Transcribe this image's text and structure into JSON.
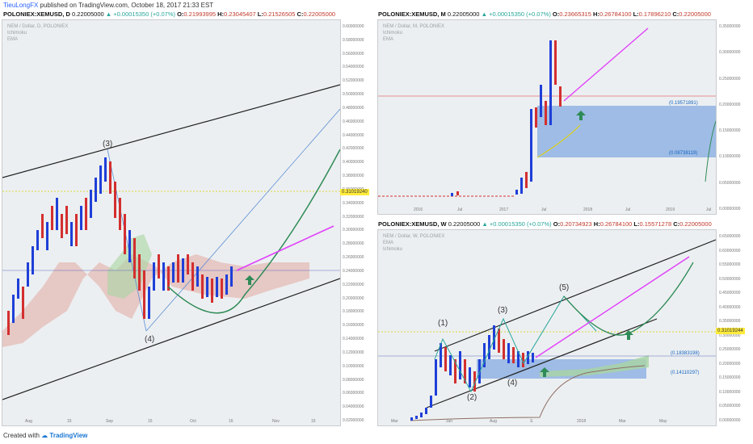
{
  "publish": {
    "user": "TieuLongFX",
    "text": " published on TradingView.com, October 18, 2017 21:33 EST"
  },
  "daily": {
    "title": "POLONIEX:XEMUSD, D",
    "o": "0.21993995",
    "h": "0.23045407",
    "l": "0.21526505",
    "c": "0.22005000",
    "last": "0.22005000",
    "change": "▲ +0.00015350 (+0.07%)",
    "legend": [
      "NEM / Dollar, D, POLONIEX",
      "Ichimoku",
      "EMA"
    ],
    "price_tag": "0.31019240",
    "waves": [
      "(3)",
      "(4)"
    ],
    "xlabels": [
      "Aug",
      "15",
      "Sep",
      "15",
      "Oct",
      "16",
      "Nov",
      "15"
    ],
    "ylabels": [
      "0.60000000",
      "0.58000000",
      "0.56000000",
      "0.54000000",
      "0.52000000",
      "0.50000000",
      "0.48000000",
      "0.46000000",
      "0.44000000",
      "0.42000000",
      "0.40000000",
      "0.38000000",
      "0.36000000",
      "0.34000000",
      "0.32000000",
      "0.30000000",
      "0.28000000",
      "0.26000000",
      "0.24000000",
      "0.22000000",
      "0.20000000",
      "0.18000000",
      "0.16000000",
      "0.14000000",
      "0.12000000",
      "0.10000000",
      "0.08000000",
      "0.06000000",
      "0.04000000",
      "0.02000000"
    ]
  },
  "monthly": {
    "title": "POLONIEX:XEMUSD, M",
    "o": "0.23665315",
    "h": "0.26784100",
    "l": "0.17896210",
    "c": "0.22005000",
    "last": "0.22005000",
    "change": "▲ +0.00015350 (+0.07%)",
    "legend": [
      "NEM / Dollar, M, POLONIEX",
      "Ichimoku",
      "EMA"
    ],
    "fib_top": "(0.19571891)",
    "fib_bot": "(0.08738119)",
    "xlabels": [
      "2016",
      "Jul",
      "2017",
      "Jul",
      "2018",
      "Jul",
      "2019",
      "Jul"
    ],
    "ylabels": [
      "0.35000000",
      "0.30000000",
      "0.25000000",
      "0.20000000",
      "0.15000000",
      "0.10000000",
      "0.05000000",
      "0.00000000"
    ]
  },
  "weekly": {
    "title": "POLONIEX:XEMUSD, W",
    "o": "0.20734923",
    "h": "0.26784100",
    "l": "0.15571278",
    "c": "0.22005000",
    "last": "0.22005000",
    "change": "▲ +0.00015350 (+0.07%)",
    "legend": [
      "NEM / Dollar, W, POLONIEX",
      "EMA",
      "Ichimoku"
    ],
    "price_tag": "0.31019244",
    "fib_top": "(0.18383198)",
    "fib_bot": "(0.14110297)",
    "waves": [
      "(1)",
      "(2)",
      "(3)",
      "(4)",
      "(5)"
    ],
    "xlabels": [
      "Mar",
      "Jun",
      "Aug",
      "S",
      "2018",
      "Mar",
      "May"
    ],
    "ylabels": [
      "0.65000000",
      "0.60000000",
      "0.55000000",
      "0.50000000",
      "0.45000000",
      "0.40000000",
      "0.35000000",
      "0.30000000",
      "0.25000000",
      "0.20000000",
      "0.15000000",
      "0.10000000",
      "0.05000000",
      "0.00000000"
    ]
  },
  "footer": {
    "created": "Created with",
    "brand": "TradingView"
  }
}
